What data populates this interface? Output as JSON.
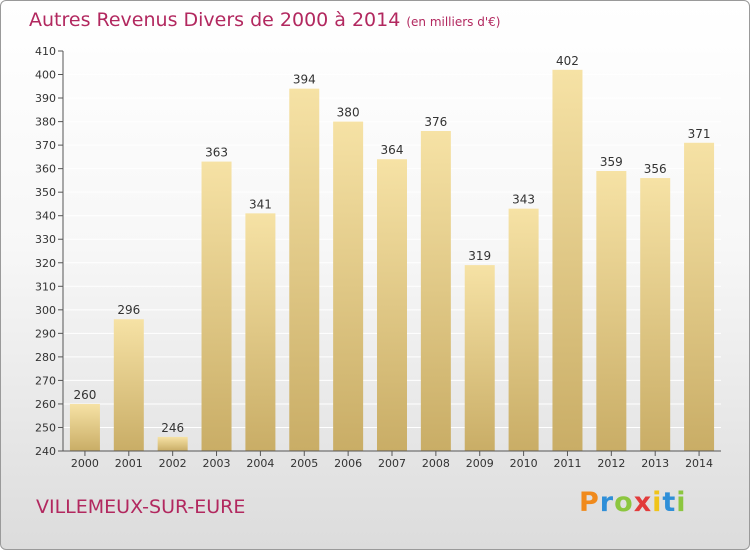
{
  "title": "Autres Revenus Divers de 2000 à 2014",
  "unit_note": "(en milliers d'€)",
  "location": "VILLEMEUX-SUR-EURE",
  "logo": {
    "letters": [
      "P",
      "r",
      "o",
      "x",
      "i",
      "t",
      "i"
    ],
    "colors": [
      "#f08a1c",
      "#2f8fd8",
      "#8cc63f",
      "#e23b3b",
      "#f0c419",
      "#2f8fd8",
      "#8cc63f"
    ]
  },
  "colors": {
    "bar_light": "#f6e2a5",
    "bar_dark": "#c9ad66",
    "grid": "#ffffff",
    "axis": "#555555",
    "title": "#b2285f"
  },
  "chart_data": {
    "type": "bar",
    "categories": [
      "2000",
      "2001",
      "2002",
      "2003",
      "2004",
      "2005",
      "2006",
      "2007",
      "2008",
      "2009",
      "2010",
      "2011",
      "2012",
      "2013",
      "2014"
    ],
    "values": [
      260,
      296,
      246,
      363,
      341,
      394,
      380,
      364,
      376,
      319,
      343,
      402,
      359,
      356,
      371
    ],
    "ylim": [
      240,
      410
    ],
    "yticks": [
      240,
      250,
      260,
      270,
      280,
      290,
      300,
      310,
      320,
      330,
      340,
      350,
      360,
      370,
      380,
      390,
      400,
      410
    ],
    "title": "Autres Revenus Divers de 2000 à 2014",
    "grid": true,
    "data_labels": true
  }
}
